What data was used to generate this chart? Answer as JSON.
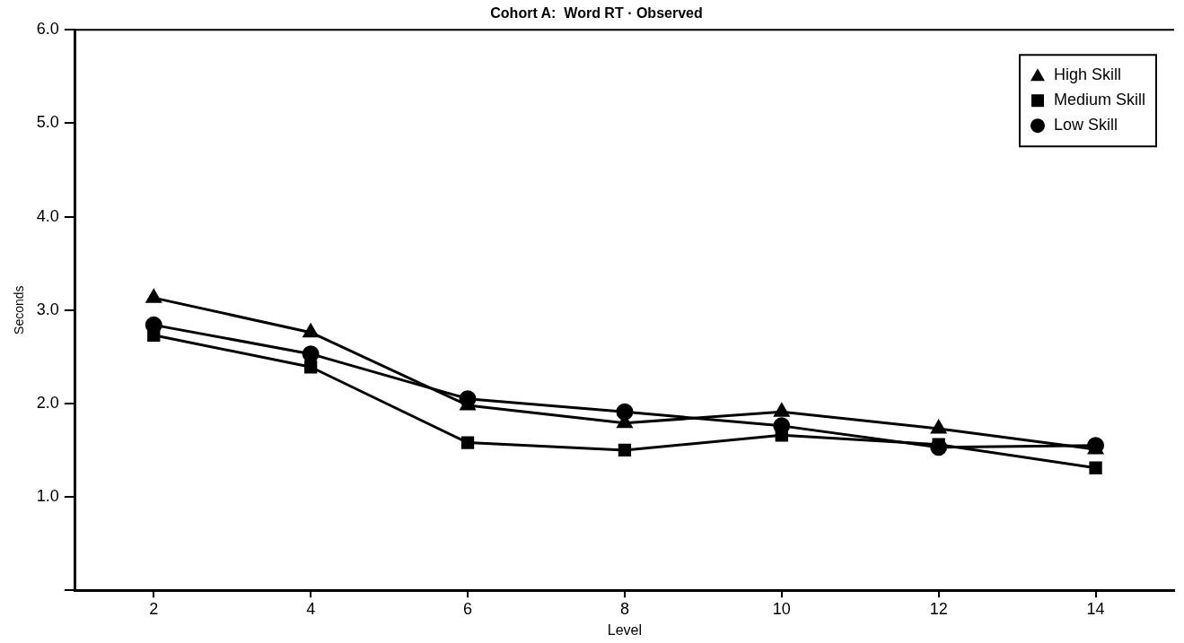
{
  "chart_data": {
    "type": "line",
    "title": "Cohort A:  Word RT · Observed",
    "xlabel": "Level",
    "ylabel": "Seconds",
    "categories": [
      "2",
      "4",
      "6",
      "8",
      "10",
      "12",
      "14"
    ],
    "ylim": [
      0,
      6
    ],
    "yticks": [
      {
        "value": 0,
        "label": null
      },
      {
        "value": 1,
        "label": "1.0"
      },
      {
        "value": 2,
        "label": "2.0"
      },
      {
        "value": 3,
        "label": "3.0"
      },
      {
        "value": 4,
        "label": "4.0"
      },
      {
        "value": 5,
        "label": "5.0"
      },
      {
        "value": 6,
        "label": "6.0"
      }
    ],
    "grid": false,
    "legend": "top right",
    "line_style": "solid",
    "series": [
      {
        "name": "High Skill",
        "color": "#000000",
        "marker": "triangle",
        "values": [
          3.13,
          2.76,
          1.98,
          1.79,
          1.91,
          1.73,
          1.51
        ]
      },
      {
        "name": "Medium Skill",
        "color": "#000000",
        "marker": "square",
        "values": [
          2.73,
          2.39,
          1.58,
          1.5,
          1.66,
          1.56,
          1.31
        ]
      },
      {
        "name": "Low Skill",
        "color": "#000000",
        "marker": "circle",
        "values": [
          2.84,
          2.53,
          2.05,
          1.91,
          1.76,
          1.53,
          1.55
        ]
      }
    ]
  }
}
